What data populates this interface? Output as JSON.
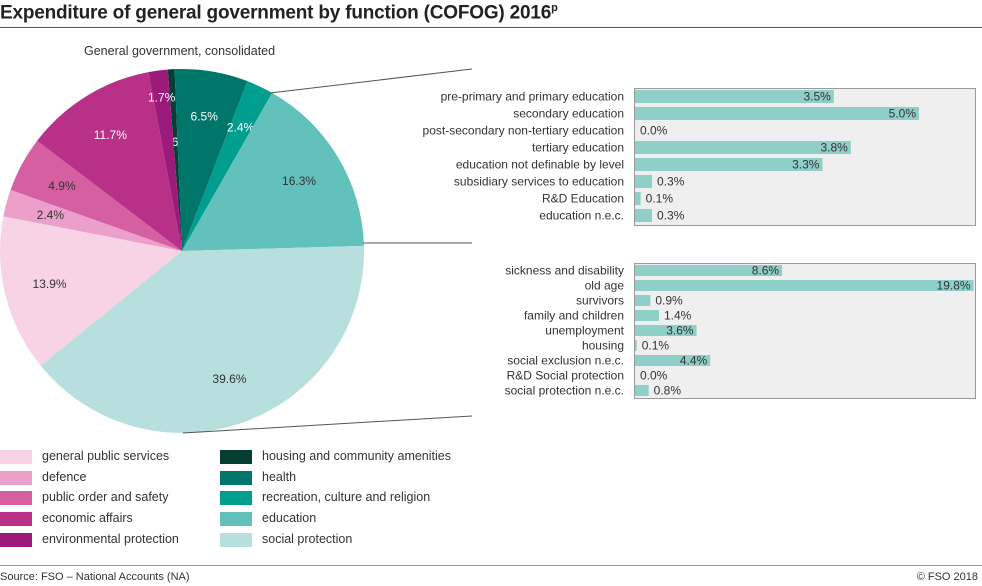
{
  "title": "Expenditure of general government by function (COFOG) 2016",
  "title_superscript": "p",
  "source": "Source: FSO – National Accounts (NA)",
  "copyright": "© FSO 2018",
  "chart_data": [
    {
      "type": "pie",
      "subtitle": "General government, consolidated",
      "slices": [
        {
          "name": "housing and community amenities",
          "value": 0.6,
          "label": "0.6%",
          "color": "#053f34"
        },
        {
          "name": "health",
          "value": 6.5,
          "label": "6.5%",
          "color": "#00756a"
        },
        {
          "name": "recreation, culture and religion",
          "value": 2.4,
          "label": "2.4%",
          "color": "#009e8f"
        },
        {
          "name": "education",
          "value": 16.3,
          "label": "16.3%",
          "color": "#62c1bb"
        },
        {
          "name": "social protection",
          "value": 39.6,
          "label": "39.6%",
          "color": "#b6dfdd"
        },
        {
          "name": "general public services",
          "value": 13.9,
          "label": "13.9%",
          "color": "#f7d3e5"
        },
        {
          "name": "defence",
          "value": 2.4,
          "label": "2.4%",
          "color": "#eb9fc9"
        },
        {
          "name": "public order and safety",
          "value": 4.9,
          "label": "4.9%",
          "color": "#d55fa0"
        },
        {
          "name": "economic affairs",
          "value": 11.7,
          "label": "11.7%",
          "color": "#b93088"
        },
        {
          "name": "environmental protection",
          "value": 1.7,
          "label": "1.7%",
          "color": "#9c1a7a"
        }
      ],
      "legend": [
        "general public services",
        "defence",
        "public order and safety",
        "economic affairs",
        "environmental protection",
        "housing and community amenities",
        "health",
        "recreation, culture and religion",
        "education",
        "social protection"
      ]
    },
    {
      "type": "bar",
      "orientation": "horizontal",
      "breakdown_of": "education",
      "color": "#8ecfc8",
      "categories": [
        "pre-primary and primary education",
        "secondary education",
        "post-secondary non-tertiary education",
        "tertiary education",
        "education not definable by level",
        "subsidiary services to education",
        "R&D Education",
        "education n.e.c."
      ],
      "values": [
        3.5,
        5.0,
        0.0,
        3.8,
        3.3,
        0.3,
        0.1,
        0.3
      ],
      "labels": [
        "3.5%",
        "5.0%",
        "0.0%",
        "3.8%",
        "3.3%",
        "0.3%",
        "0.1%",
        "0.3%"
      ],
      "xlim": [
        0,
        6
      ]
    },
    {
      "type": "bar",
      "orientation": "horizontal",
      "breakdown_of": "social protection",
      "color": "#8ecfc8",
      "categories": [
        "sickness and disability",
        "old age",
        "survivors",
        "family and children",
        "unemployment",
        "housing",
        "social exclusion n.e.c.",
        "R&D Social protection",
        "social protection n.e.c."
      ],
      "values": [
        8.6,
        19.8,
        0.9,
        1.4,
        3.6,
        0.1,
        4.4,
        0.0,
        0.8
      ],
      "labels": [
        "8.6%",
        "19.8%",
        "0.9%",
        "1.4%",
        "3.6%",
        "0.1%",
        "4.4%",
        "0.0%",
        "0.8%"
      ],
      "xlim": [
        0,
        19.9
      ]
    }
  ]
}
